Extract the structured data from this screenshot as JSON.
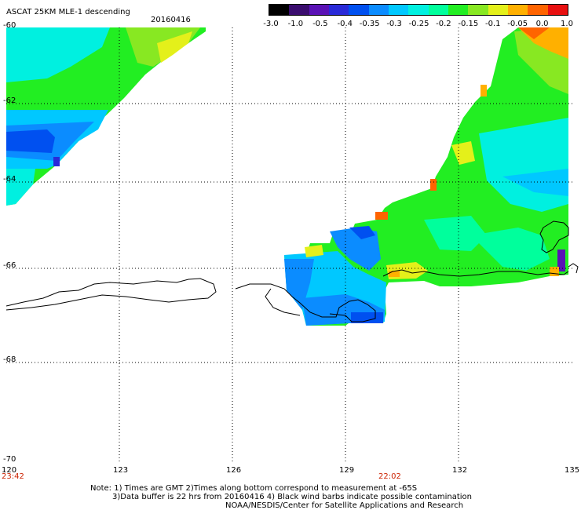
{
  "header": {
    "title": "ASCAT 25KM MLE-1 descending",
    "date": "20160416"
  },
  "legend": {
    "labels": [
      "-3.0",
      "-1.0",
      "-0.5",
      "-0.4",
      "-0.35",
      "-0.3",
      "-0.25",
      "-0.2",
      "-0.15",
      "-0.1",
      "-0.05",
      "0.0",
      "1.0"
    ],
    "colors": [
      "#000000",
      "#3a0d6e",
      "#5a12b5",
      "#2a2ad8",
      "#0050f0",
      "#0b8cff",
      "#00c8ff",
      "#00f0e0",
      "#00ff9c",
      "#22ee22",
      "#88e822",
      "#e4f01a",
      "#ffb000",
      "#ff6400",
      "#e81010"
    ]
  },
  "axes": {
    "lon_labels": [
      "120",
      "123",
      "126",
      "129",
      "132",
      "135"
    ],
    "lat_labels": [
      "-60",
      "-62",
      "-64",
      "-66",
      "-68",
      "-70"
    ],
    "times": [
      "23:42",
      "22:02"
    ]
  },
  "notes": {
    "line1": "Note: 1) Times are GMT 2)Times along bottom correspond to measurement at -65S",
    "line2": "3)Data buffer is 22 hrs from 20160416 4) Black wind barbs indicate possible contamination",
    "line3": "NOAA/NESDIS/Center for Satellite Applications and Research"
  }
}
